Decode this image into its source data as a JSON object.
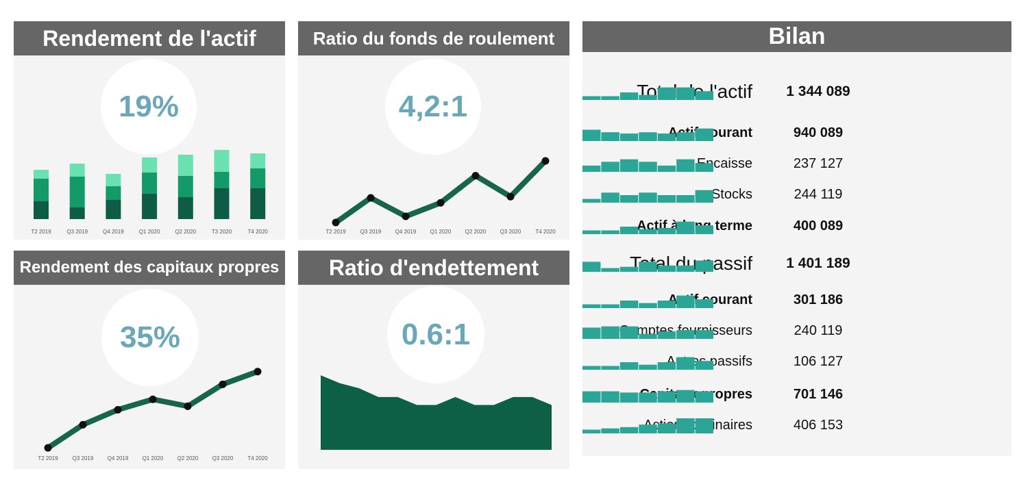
{
  "panels": {
    "roa": {
      "title": "Rendement de l'actif",
      "kpi": "19%"
    },
    "wcr": {
      "title": "Ratio du fonds de roulement",
      "kpi": "4,2:1"
    },
    "roe": {
      "title": "Rendement des capitaux propres",
      "kpi": "35%"
    },
    "debt": {
      "title": "Ratio d'endettement",
      "kpi": "0.6:1"
    },
    "bilan": {
      "title": "Bilan"
    }
  },
  "colors": {
    "header_bg": "#666666",
    "panel_bg": "#f4f4f4",
    "kpi_text": "#6aa7b8",
    "dark_green": "#0e5c45",
    "mid_green": "#139a68",
    "light_green": "#6be0b1",
    "line_green": "#17664c",
    "area_green": "#0d5f45",
    "spark_teal": "#2aa596"
  },
  "chart_data": [
    {
      "type": "bar",
      "stacked": true,
      "categories": [
        "T2 2019",
        "Q3 2019",
        "Q4 2019",
        "Q1 2020",
        "Q2 2020",
        "T3 2020",
        "T4 2020"
      ],
      "series": [
        {
          "values": [
            26,
            17,
            28,
            37,
            32,
            45,
            45
          ]
        },
        {
          "values": [
            33,
            45,
            20,
            31,
            31,
            24,
            29
          ]
        },
        {
          "values": [
            13,
            19,
            18,
            22,
            31,
            32,
            22
          ]
        }
      ],
      "ylim": [
        0,
        110
      ]
    },
    {
      "type": "line",
      "categories": [
        "T2 2019",
        "Q3 2019",
        "Q4 2019",
        "Q1 2020",
        "Q2 2020",
        "Q3 2020",
        "T4 2020"
      ],
      "values": [
        1.0,
        3.0,
        1.5,
        2.6,
        4.8,
        3.1,
        6.0
      ],
      "ylim": [
        0,
        6.5
      ]
    },
    {
      "type": "line",
      "categories": [
        "T2 2019",
        "Q3 2019",
        "Q4 2019",
        "Q1 2020",
        "Q2 2020",
        "Q3 2020",
        "T4 2020"
      ],
      "values": [
        1.0,
        3.0,
        4.3,
        5.2,
        4.6,
        6.5,
        7.6
      ],
      "ylim": [
        0,
        8
      ]
    },
    {
      "type": "area",
      "values": [
        10.3,
        9.2,
        8.5,
        7.3,
        7.3,
        6.2,
        6.2,
        7.3,
        6.2,
        6.2,
        7.3,
        7.3,
        6.2
      ],
      "ylim": [
        0,
        10.5
      ]
    }
  ],
  "bilan": {
    "rows": [
      {
        "label": "Total de l'actif",
        "value": "1 344 089",
        "style": "big",
        "spark": [
          3,
          3,
          6,
          4,
          10,
          10,
          7
        ]
      },
      {
        "label": "Actif courant",
        "value": "940 089",
        "style": "bold",
        "spark": [
          9,
          7,
          6,
          7,
          6,
          7,
          10
        ]
      },
      {
        "label": "Encaisse",
        "value": "237 127",
        "style": "normal",
        "spark": [
          5,
          8,
          10,
          8,
          5,
          10,
          7
        ]
      },
      {
        "label": "Stocks",
        "value": "244 119",
        "style": "normal",
        "spark": [
          3,
          8,
          6,
          8,
          6,
          6,
          10
        ]
      },
      {
        "label": "Actif à long terme",
        "value": "400 089",
        "style": "bold",
        "spark": [
          3,
          3,
          6,
          4,
          5,
          10,
          7
        ]
      },
      {
        "label": "Total du passif",
        "value": "1 401 189",
        "style": "big",
        "spark": [
          8,
          3,
          4,
          8,
          5,
          5,
          9
        ]
      },
      {
        "label": "Actif courant",
        "value": "301 186",
        "style": "bold",
        "spark": [
          3,
          3,
          6,
          4,
          6,
          10,
          7
        ]
      },
      {
        "label": "Comptes fournisseurs",
        "value": "240 119",
        "style": "normal",
        "spark": [
          9,
          10,
          10,
          4,
          6,
          7,
          7
        ]
      },
      {
        "label": "Autres passifs",
        "value": "106 127",
        "style": "normal",
        "spark": [
          3,
          3,
          6,
          4,
          6,
          10,
          7
        ]
      },
      {
        "label": "Capitaux propres",
        "value": "701 146",
        "style": "bold",
        "spark": [
          9,
          9,
          8,
          8,
          9,
          10,
          9
        ]
      },
      {
        "label": "Actions ordinaires",
        "value": "406 153",
        "style": "normal",
        "spark": [
          3,
          4,
          5,
          7,
          8,
          12,
          12
        ]
      }
    ]
  }
}
